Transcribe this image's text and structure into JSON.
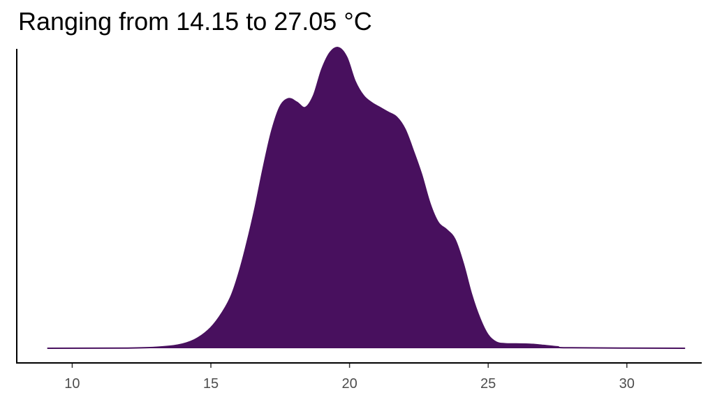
{
  "chart_data": {
    "type": "area",
    "title": "Ranging from 14.15 to 27.05 °C",
    "xlabel": "",
    "ylabel": "",
    "xlim": [
      8,
      32.7
    ],
    "ylim": [
      0,
      0.125
    ],
    "x_ticks": [
      10,
      15,
      20,
      25,
      30
    ],
    "x_tick_labels": [
      "10",
      "15",
      "20",
      "25",
      "30"
    ],
    "grid": false,
    "legend": "none",
    "fill_color": "#48105e",
    "x": [
      9.1,
      12.0,
      13.0,
      13.8,
      14.4,
      14.9,
      15.3,
      15.7,
      16.0,
      16.3,
      16.6,
      16.9,
      17.2,
      17.5,
      17.8,
      18.1,
      18.4,
      18.7,
      19.0,
      19.3,
      19.6,
      19.9,
      20.2,
      20.5,
      20.8,
      21.1,
      21.4,
      21.7,
      22.0,
      22.3,
      22.6,
      22.9,
      23.2,
      23.5,
      23.8,
      24.1,
      24.4,
      24.7,
      25.0,
      25.3,
      25.6,
      26.0,
      26.5,
      27.0,
      27.5,
      28.0,
      32.1
    ],
    "y": [
      0.0,
      0.0001,
      0.0004,
      0.0013,
      0.0035,
      0.0075,
      0.013,
      0.021,
      0.031,
      0.044,
      0.059,
      0.076,
      0.091,
      0.101,
      0.1042,
      0.1027,
      0.1005,
      0.1055,
      0.1165,
      0.1235,
      0.1255,
      0.1215,
      0.1115,
      0.1055,
      0.1025,
      0.1005,
      0.0985,
      0.0965,
      0.0915,
      0.0825,
      0.0725,
      0.0605,
      0.0525,
      0.0495,
      0.0455,
      0.0355,
      0.0225,
      0.0125,
      0.0055,
      0.0025,
      0.0019,
      0.0018,
      0.0017,
      0.0012,
      0.0006,
      0.0002,
      0.0
    ]
  }
}
